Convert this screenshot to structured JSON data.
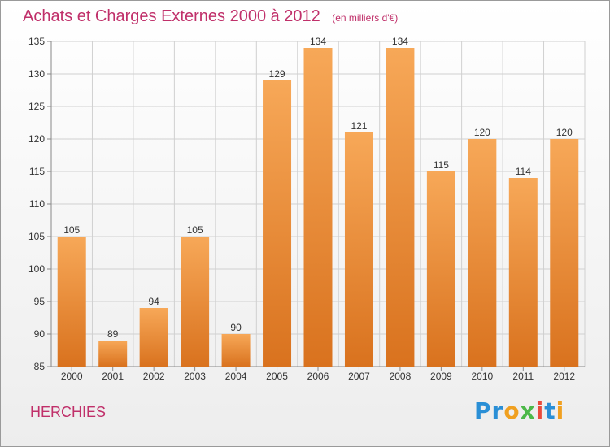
{
  "header": {
    "title": "Achats et Charges Externes 2000 à 2012",
    "unit": "(en milliers d'€)"
  },
  "location": "HERCHIES",
  "brand": {
    "text": "Proxiti"
  },
  "colors": {
    "title": "#c0306a",
    "bar_top": "#f7a858",
    "bar_bottom": "#d9721e"
  },
  "chart_data": {
    "type": "bar",
    "categories": [
      "2000",
      "2001",
      "2002",
      "2003",
      "2004",
      "2005",
      "2006",
      "2007",
      "2008",
      "2009",
      "2010",
      "2011",
      "2012"
    ],
    "values": [
      105,
      89,
      94,
      105,
      90,
      129,
      134,
      121,
      134,
      115,
      120,
      114,
      120
    ],
    "ylim": [
      85,
      135
    ],
    "yticks": [
      85,
      90,
      95,
      100,
      105,
      110,
      115,
      120,
      125,
      130,
      135
    ],
    "grid": true,
    "data_labels": true
  }
}
